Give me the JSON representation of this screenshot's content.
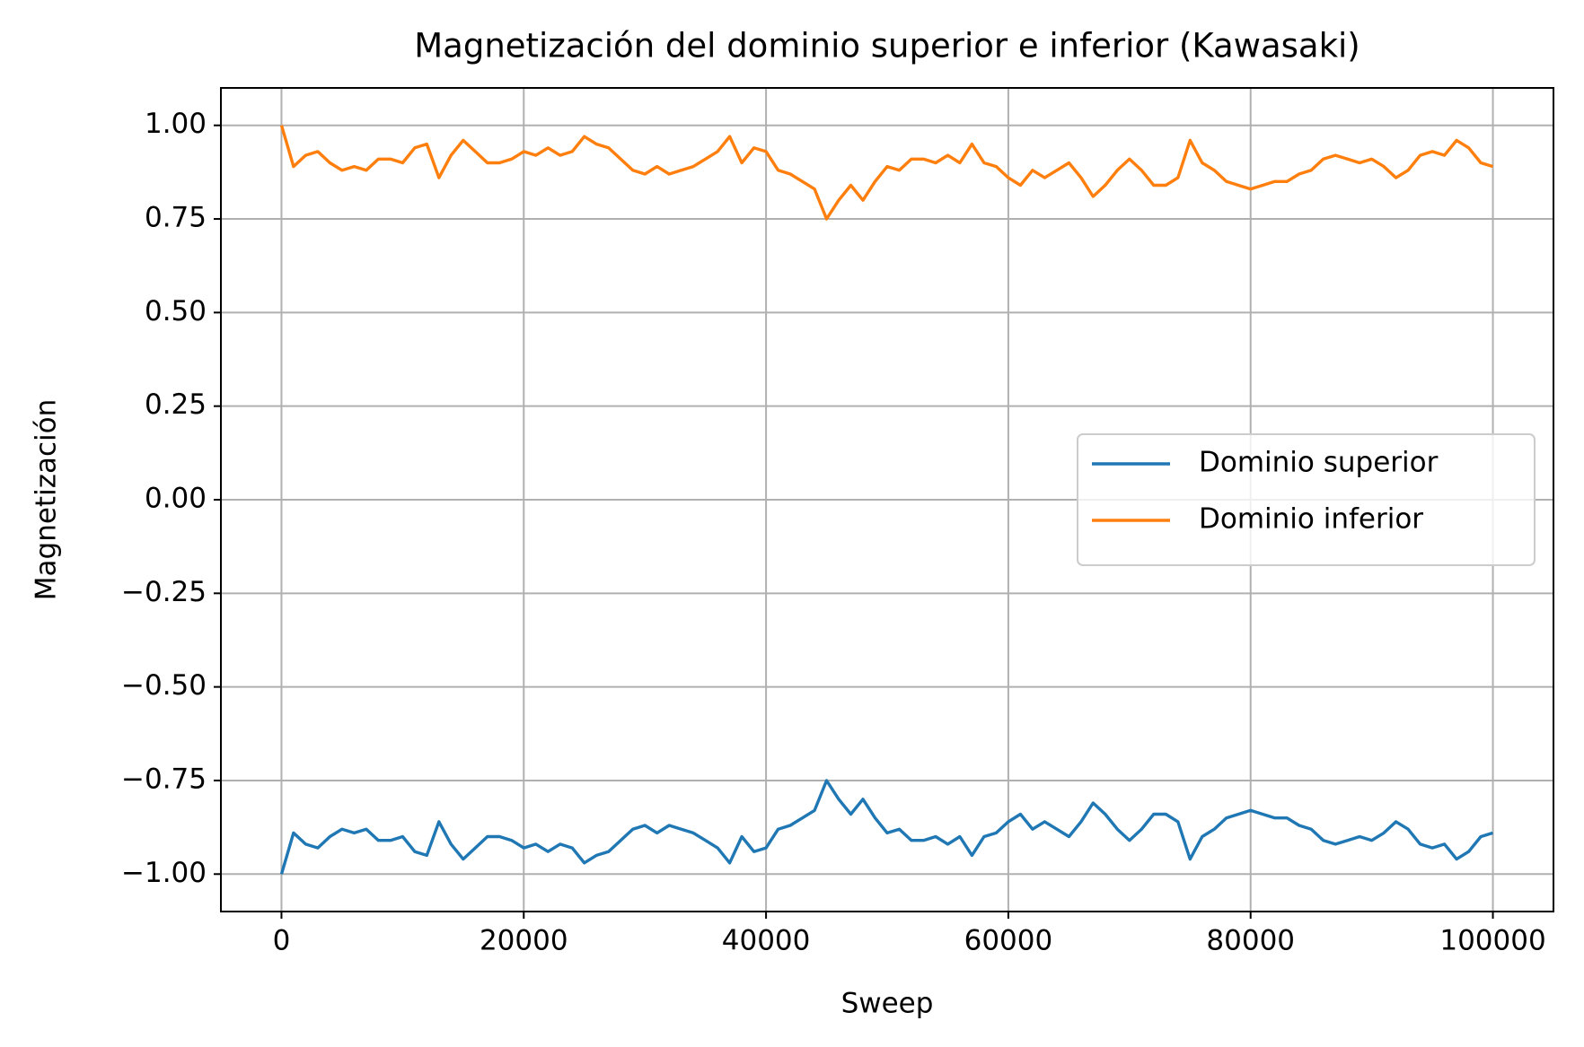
{
  "chart_data": {
    "type": "line",
    "title": "Magnetización del dominio superior e inferior (Kawasaki)",
    "xlabel": "Sweep",
    "ylabel": "Magnetización",
    "x": [
      0,
      1000,
      2000,
      3000,
      4000,
      5000,
      6000,
      7000,
      8000,
      9000,
      10000,
      11000,
      12000,
      13000,
      14000,
      15000,
      16000,
      17000,
      18000,
      19000,
      20000,
      21000,
      22000,
      23000,
      24000,
      25000,
      26000,
      27000,
      28000,
      29000,
      30000,
      31000,
      32000,
      33000,
      34000,
      35000,
      36000,
      37000,
      38000,
      39000,
      40000,
      41000,
      42000,
      43000,
      44000,
      45000,
      46000,
      47000,
      48000,
      49000,
      50000,
      51000,
      52000,
      53000,
      54000,
      55000,
      56000,
      57000,
      58000,
      59000,
      60000,
      61000,
      62000,
      63000,
      64000,
      65000,
      66000,
      67000,
      68000,
      69000,
      70000,
      71000,
      72000,
      73000,
      74000,
      75000,
      76000,
      77000,
      78000,
      79000,
      80000,
      81000,
      82000,
      83000,
      84000,
      85000,
      86000,
      87000,
      88000,
      89000,
      90000,
      91000,
      92000,
      93000,
      94000,
      95000,
      96000,
      97000,
      98000,
      99000,
      100000
    ],
    "series": [
      {
        "name": "Dominio superior",
        "color": "#1f77b4",
        "values": [
          -1.0,
          -0.89,
          -0.92,
          -0.93,
          -0.9,
          -0.88,
          -0.89,
          -0.88,
          -0.91,
          -0.91,
          -0.9,
          -0.94,
          -0.95,
          -0.86,
          -0.92,
          -0.96,
          -0.93,
          -0.9,
          -0.9,
          -0.91,
          -0.93,
          -0.92,
          -0.94,
          -0.92,
          -0.93,
          -0.97,
          -0.95,
          -0.94,
          -0.91,
          -0.88,
          -0.87,
          -0.89,
          -0.87,
          -0.88,
          -0.89,
          -0.91,
          -0.93,
          -0.97,
          -0.9,
          -0.94,
          -0.93,
          -0.88,
          -0.87,
          -0.85,
          -0.83,
          -0.75,
          -0.8,
          -0.84,
          -0.8,
          -0.85,
          -0.89,
          -0.88,
          -0.91,
          -0.91,
          -0.9,
          -0.92,
          -0.9,
          -0.95,
          -0.9,
          -0.89,
          -0.86,
          -0.84,
          -0.88,
          -0.86,
          -0.88,
          -0.9,
          -0.86,
          -0.81,
          -0.84,
          -0.88,
          -0.91,
          -0.88,
          -0.84,
          -0.84,
          -0.86,
          -0.96,
          -0.9,
          -0.88,
          -0.85,
          -0.84,
          -0.83,
          -0.84,
          -0.85,
          -0.85,
          -0.87,
          -0.88,
          -0.91,
          -0.92,
          -0.91,
          -0.9,
          -0.91,
          -0.89,
          -0.86,
          -0.88,
          -0.92,
          -0.93,
          -0.92,
          -0.96,
          -0.94,
          -0.9,
          -0.89
        ]
      },
      {
        "name": "Dominio inferior",
        "color": "#ff7f0e",
        "values": [
          1.0,
          0.89,
          0.92,
          0.93,
          0.9,
          0.88,
          0.89,
          0.88,
          0.91,
          0.91,
          0.9,
          0.94,
          0.95,
          0.86,
          0.92,
          0.96,
          0.93,
          0.9,
          0.9,
          0.91,
          0.93,
          0.92,
          0.94,
          0.92,
          0.93,
          0.97,
          0.95,
          0.94,
          0.91,
          0.88,
          0.87,
          0.89,
          0.87,
          0.88,
          0.89,
          0.91,
          0.93,
          0.97,
          0.9,
          0.94,
          0.93,
          0.88,
          0.87,
          0.85,
          0.83,
          0.75,
          0.8,
          0.84,
          0.8,
          0.85,
          0.89,
          0.88,
          0.91,
          0.91,
          0.9,
          0.92,
          0.9,
          0.95,
          0.9,
          0.89,
          0.86,
          0.84,
          0.88,
          0.86,
          0.88,
          0.9,
          0.86,
          0.81,
          0.84,
          0.88,
          0.91,
          0.88,
          0.84,
          0.84,
          0.86,
          0.96,
          0.9,
          0.88,
          0.85,
          0.84,
          0.83,
          0.84,
          0.85,
          0.85,
          0.87,
          0.88,
          0.91,
          0.92,
          0.91,
          0.9,
          0.91,
          0.89,
          0.86,
          0.88,
          0.92,
          0.93,
          0.92,
          0.96,
          0.94,
          0.9,
          0.89
        ]
      }
    ],
    "xlim": [
      -5000,
      105000
    ],
    "xticks": [
      0,
      20000,
      40000,
      60000,
      80000,
      100000
    ],
    "ylim": [
      -1.1,
      1.1
    ],
    "yticks": [
      {
        "value": -1,
        "label": "−1.00"
      },
      {
        "value": -0.75,
        "label": "−0.75"
      },
      {
        "value": -0.5,
        "label": "−0.50"
      },
      {
        "value": -0.25,
        "label": "−0.25"
      },
      {
        "value": 0,
        "label": "0.00"
      },
      {
        "value": 0.25,
        "label": "0.25"
      },
      {
        "value": 0.5,
        "label": "0.50"
      },
      {
        "value": 0.75,
        "label": "0.75"
      },
      {
        "value": 1,
        "label": "1.00"
      }
    ],
    "grid": true,
    "legend": "center right"
  }
}
